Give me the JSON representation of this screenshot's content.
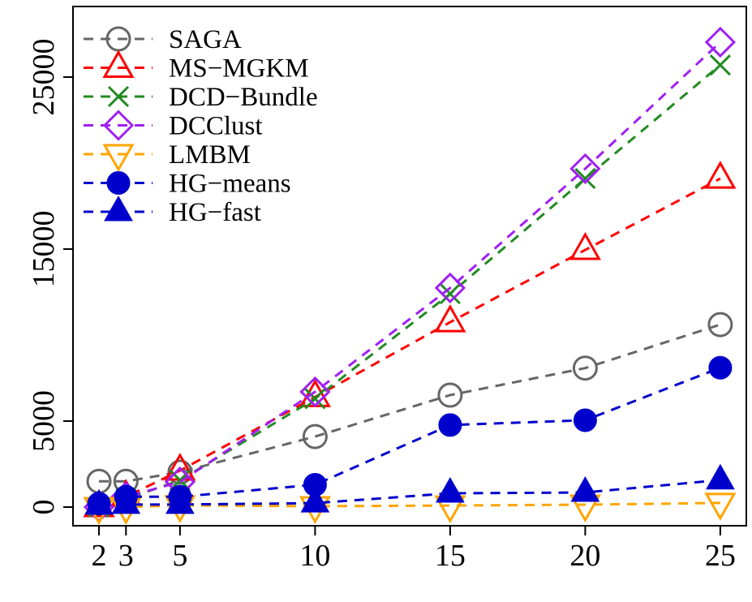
{
  "chart_data": {
    "type": "line",
    "title": "",
    "xlabel": "",
    "ylabel": "",
    "x": [
      2,
      3,
      5,
      10,
      15,
      20,
      25
    ],
    "x_tick_labels": [
      "2",
      "3",
      "5",
      "10",
      "15",
      "20",
      "25"
    ],
    "y_ticks": [
      0,
      5000,
      15000,
      25000
    ],
    "y_tick_labels": [
      "0",
      "5000",
      "15000",
      "25000"
    ],
    "xlim": [
      1,
      26
    ],
    "ylim": [
      -1000,
      29000
    ],
    "grid": false,
    "legend_position": "top-left",
    "series": [
      {
        "name": "SAGA",
        "color": "#666666",
        "marker": "open-circle",
        "values": [
          1500,
          1500,
          2030,
          4100,
          6510,
          8080,
          10610
        ]
      },
      {
        "name": "MS−MGKM",
        "color": "#FF0000",
        "marker": "open-triangle-up",
        "values": [
          0,
          600,
          2120,
          6400,
          10750,
          14950,
          19100
        ]
      },
      {
        "name": "DCD−Bundle",
        "color": "#228B22",
        "marker": "x",
        "values": [
          0,
          470,
          1560,
          6300,
          12400,
          19100,
          25700
        ]
      },
      {
        "name": "DCClust",
        "color": "#A020F0",
        "marker": "open-diamond",
        "values": [
          0,
          600,
          1460,
          6700,
          12740,
          19670,
          27030
        ]
      },
      {
        "name": "LMBM",
        "color": "#FFA500",
        "marker": "open-triangle-down",
        "values": [
          0,
          0,
          100,
          50,
          90,
          140,
          240
        ]
      },
      {
        "name": "HG−means",
        "color": "#0000CD",
        "marker": "filled-circle",
        "values": [
          200,
          600,
          600,
          1300,
          4770,
          5050,
          8100
        ]
      },
      {
        "name": "HG−fast",
        "color": "#0000CD",
        "marker": "filled-triangle-up",
        "values": [
          100,
          150,
          150,
          230,
          800,
          850,
          1570
        ]
      }
    ]
  }
}
